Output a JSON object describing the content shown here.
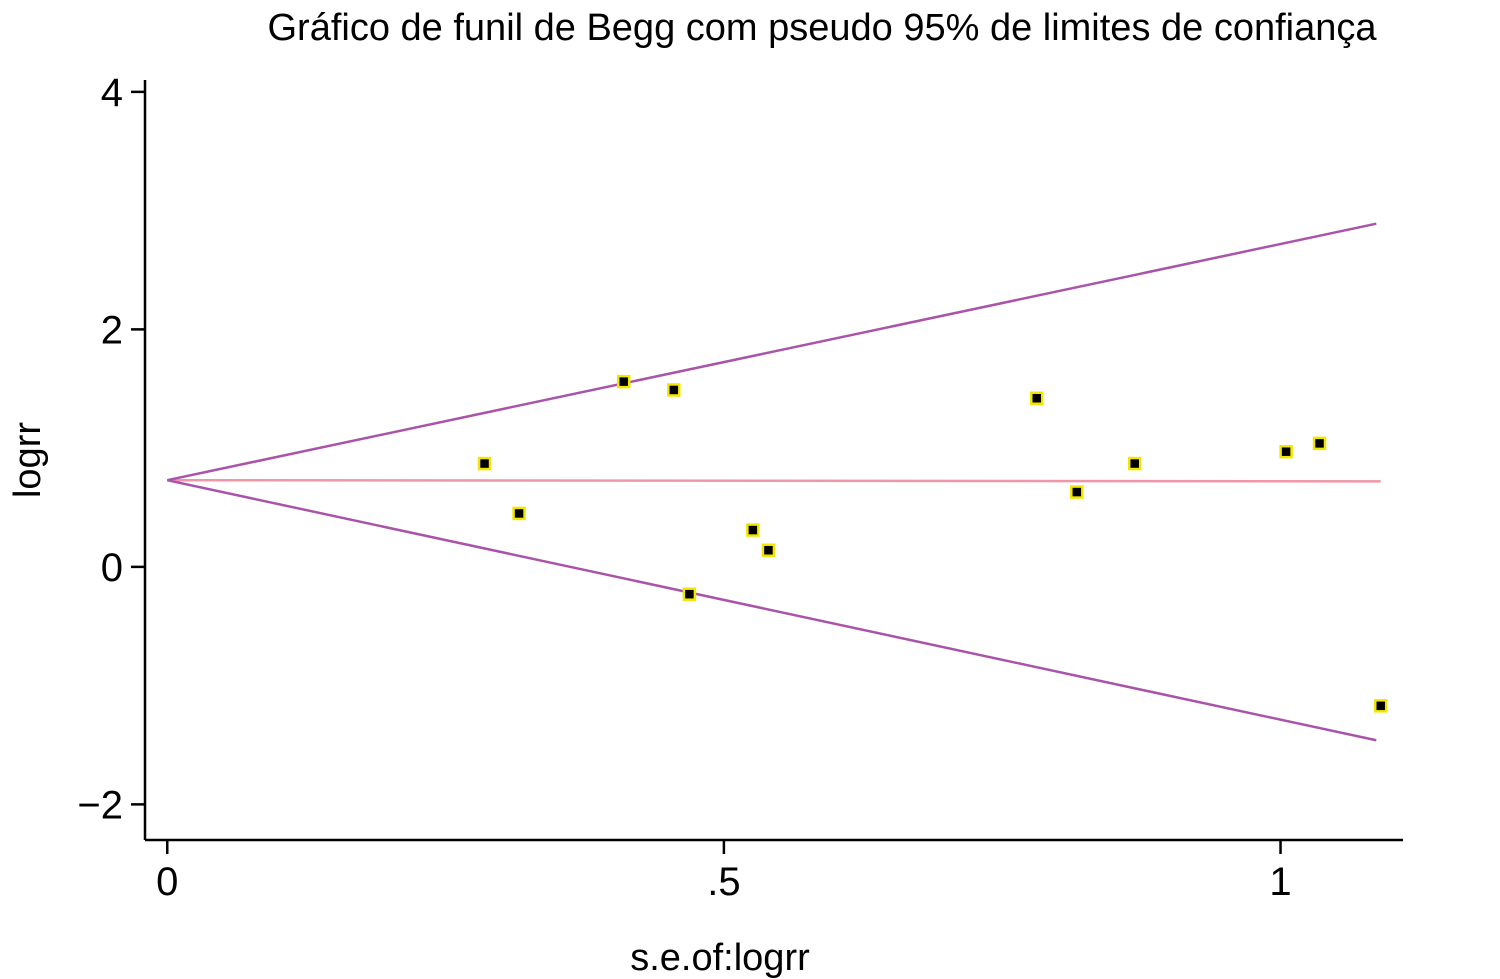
{
  "chart_data": {
    "type": "scatter",
    "title": "Gráfico de funil de Begg com pseudo 95% de limites de confiança",
    "xlabel": "s.e.of:logrr",
    "ylabel": "logrr",
    "xlim": [
      -0.02,
      1.11
    ],
    "ylim": [
      -2.3,
      4.1
    ],
    "x_ticks": [
      {
        "value": 0,
        "label": "0"
      },
      {
        "value": 0.5,
        "label": ".5"
      },
      {
        "value": 1,
        "label": "1"
      }
    ],
    "y_ticks": [
      {
        "value": -2,
        "label": "−2"
      },
      {
        "value": 0,
        "label": "0"
      },
      {
        "value": 2,
        "label": "2"
      },
      {
        "value": 4,
        "label": "4"
      }
    ],
    "grid": false,
    "pooled_estimate": {
      "x": [
        0,
        1.09
      ],
      "y": [
        0.73,
        0.72
      ],
      "color": "#ef96a8"
    },
    "upper_limit": {
      "x": [
        0,
        1.086
      ],
      "y": [
        0.73,
        2.89
      ],
      "color": "#a954a8"
    },
    "lower_limit": {
      "x": [
        0,
        1.086
      ],
      "y": [
        0.73,
        -1.46
      ],
      "color": "#a954a8"
    },
    "points_color": "#000000",
    "points_edge_color": "#f2e600",
    "points": [
      {
        "x": 0.285,
        "y": 0.87
      },
      {
        "x": 0.316,
        "y": 0.45
      },
      {
        "x": 0.41,
        "y": 1.56
      },
      {
        "x": 0.455,
        "y": 1.49
      },
      {
        "x": 0.469,
        "y": -0.23
      },
      {
        "x": 0.526,
        "y": 0.31
      },
      {
        "x": 0.54,
        "y": 0.14
      },
      {
        "x": 0.781,
        "y": 1.42
      },
      {
        "x": 0.817,
        "y": 0.63
      },
      {
        "x": 0.869,
        "y": 0.87
      },
      {
        "x": 1.005,
        "y": 0.97
      },
      {
        "x": 1.035,
        "y": 1.04
      },
      {
        "x": 1.09,
        "y": -1.17
      }
    ]
  }
}
